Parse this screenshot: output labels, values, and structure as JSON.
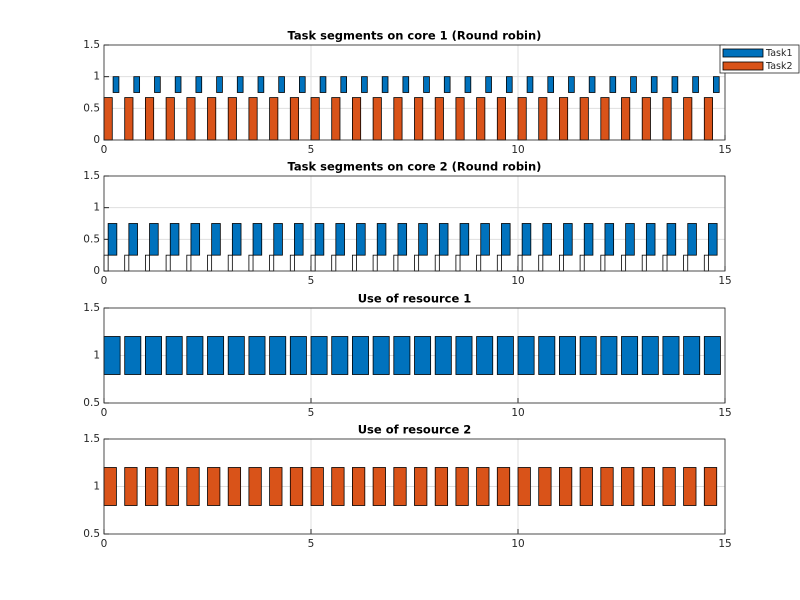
{
  "chart_data": [
    {
      "type": "segments",
      "title": "Task segments on core 1 (Round robin)",
      "xlim": [
        0,
        15
      ],
      "xticks": [
        0,
        5,
        10,
        15
      ],
      "ylim": [
        0,
        1.5
      ],
      "yticks": [
        0,
        0.5,
        1,
        1.5
      ],
      "grid": true,
      "legend": "outside-top-right",
      "series": [
        {
          "name": "Task1",
          "color": "#0072bd",
          "width": 0.14,
          "bottom": 0.75,
          "top": 1,
          "x": [
            0.22,
            0.72,
            1.22,
            1.72,
            2.22,
            2.72,
            3.22,
            3.72,
            4.22,
            4.72,
            5.22,
            5.72,
            6.22,
            6.72,
            7.22,
            7.72,
            8.22,
            8.72,
            9.22,
            9.72,
            10.22,
            10.72,
            11.22,
            11.72,
            12.22,
            12.72,
            13.22,
            13.72,
            14.22,
            14.72
          ]
        },
        {
          "name": "Task2",
          "color": "#d95319",
          "width": 0.2,
          "bottom": 0,
          "top": 0.67,
          "x": [
            0,
            0.5,
            1,
            1.5,
            2,
            2.5,
            3,
            3.5,
            4,
            4.5,
            5,
            5.5,
            6,
            6.5,
            7,
            7.5,
            8,
            8.5,
            9,
            9.5,
            10,
            10.5,
            11,
            11.5,
            12,
            12.5,
            13,
            13.5,
            14,
            14.5
          ]
        }
      ]
    },
    {
      "type": "segments",
      "title": "Task segments on core 2 (Round robin)",
      "xlim": [
        0,
        15
      ],
      "xticks": [
        0,
        5,
        10,
        15
      ],
      "ylim": [
        0,
        1.5
      ],
      "yticks": [
        0,
        0.5,
        1,
        1.5
      ],
      "grid": true,
      "series": [
        {
          "color": "#0072bd",
          "width": 0.21,
          "bottom": 0.25,
          "top": 0.75,
          "x": [
            0.1,
            0.6,
            1.1,
            1.6,
            2.1,
            2.6,
            3.1,
            3.6,
            4.1,
            4.6,
            5.1,
            5.6,
            6.1,
            6.6,
            7.1,
            7.6,
            8.1,
            8.6,
            9.1,
            9.6,
            10.1,
            10.6,
            11.1,
            11.6,
            12.1,
            12.6,
            13.1,
            13.6,
            14.1,
            14.6
          ]
        },
        {
          "color": "#ffffff",
          "width": 0.1,
          "bottom": 0,
          "top": 0.25,
          "x": [
            0,
            0.5,
            1,
            1.5,
            2,
            2.5,
            3,
            3.5,
            4,
            4.5,
            5,
            5.5,
            6,
            6.5,
            7,
            7.5,
            8,
            8.5,
            9,
            9.5,
            10,
            10.5,
            11,
            11.5,
            12,
            12.5,
            13,
            13.5,
            14,
            14.5
          ]
        }
      ]
    },
    {
      "type": "segments",
      "title": "Use of resource 1",
      "xlim": [
        0,
        15
      ],
      "xticks": [
        0,
        5,
        10,
        15
      ],
      "ylim": [
        0.5,
        1.5
      ],
      "yticks": [
        0.5,
        1,
        1.5
      ],
      "grid": true,
      "series": [
        {
          "color": "#0072bd",
          "width": 0.39,
          "bottom": 0.8,
          "top": 1.2,
          "x": [
            0,
            0.5,
            1,
            1.5,
            2,
            2.5,
            3,
            3.5,
            4,
            4.5,
            5,
            5.5,
            6,
            6.5,
            7,
            7.5,
            8,
            8.5,
            9,
            9.5,
            10,
            10.5,
            11,
            11.5,
            12,
            12.5,
            13,
            13.5,
            14,
            14.5
          ]
        }
      ]
    },
    {
      "type": "segments",
      "title": "Use of resource 2",
      "xlim": [
        0,
        15
      ],
      "xticks": [
        0,
        5,
        10,
        15
      ],
      "ylim": [
        0.5,
        1.5
      ],
      "yticks": [
        0.5,
        1,
        1.5
      ],
      "grid": true,
      "series": [
        {
          "color": "#d95319",
          "width": 0.3,
          "bottom": 0.8,
          "top": 1.2,
          "x": [
            0,
            0.5,
            1,
            1.5,
            2,
            2.5,
            3,
            3.5,
            4,
            4.5,
            5,
            5.5,
            6,
            6.5,
            7,
            7.5,
            8,
            8.5,
            9,
            9.5,
            10,
            10.5,
            11,
            11.5,
            12,
            12.5,
            13,
            13.5,
            14,
            14.5
          ]
        }
      ]
    }
  ]
}
